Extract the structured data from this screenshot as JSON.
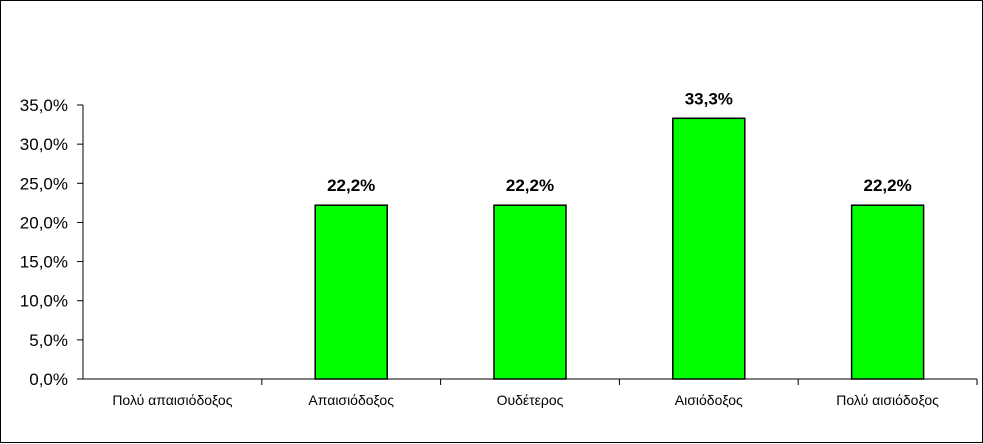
{
  "chart_data": {
    "type": "bar",
    "categories": [
      "Πολύ απαισιόδοξος",
      "Απαισιόδοξος",
      "Ουδέτερος",
      "Αισιόδοξος",
      "Πολύ αισιόδοξος"
    ],
    "values": [
      0.0,
      22.2,
      22.2,
      33.3,
      22.2
    ],
    "data_labels": [
      "",
      "22,2%",
      "22,2%",
      "33,3%",
      "22,2%"
    ],
    "y_ticks": [
      "0,0%",
      "5,0%",
      "10,0%",
      "15,0%",
      "20,0%",
      "25,0%",
      "30,0%",
      "35,0%"
    ],
    "ylim": [
      0,
      35
    ],
    "title": "",
    "xlabel": "",
    "ylabel": "",
    "grid": false,
    "legend": "none",
    "bar_color": "#00ff00",
    "bar_edge_color": "#000000"
  }
}
